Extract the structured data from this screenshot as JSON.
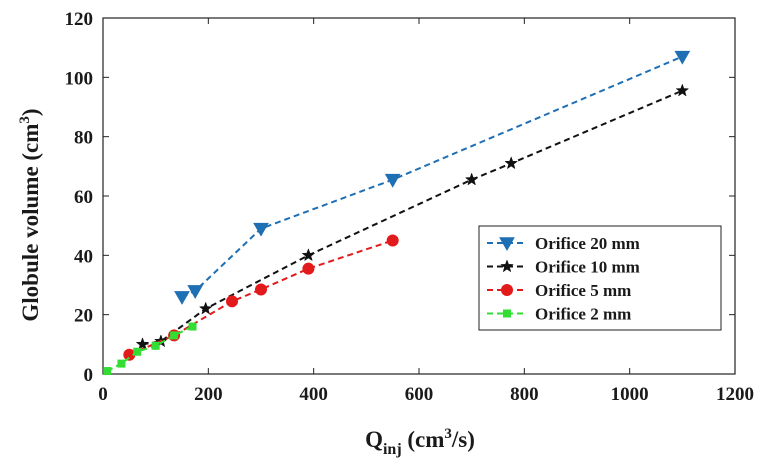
{
  "chart_data": {
    "type": "line",
    "title": "",
    "xlabel": {
      "main": "Q",
      "sub": "inj",
      "rest1": " (cm",
      "sup": "3",
      "rest2": "/s)"
    },
    "ylabel": {
      "main": "Globule volume (cm",
      "sup": "3",
      "rest": ")"
    },
    "xlim": [
      0,
      1200
    ],
    "ylim": [
      0,
      120
    ],
    "x_ticks": [
      "0",
      "200",
      "400",
      "600",
      "800",
      "1000",
      "1200"
    ],
    "y_ticks": [
      "0",
      "20",
      "40",
      "60",
      "80",
      "100",
      "120"
    ],
    "grid": false,
    "legend_position": "lower-right",
    "series": [
      {
        "name": "Orifice 20 mm",
        "color": "#1f6fb4",
        "marker": "triangle-down",
        "x": [
          150,
          175,
          300,
          550,
          1100
        ],
        "y": [
          26,
          28,
          49,
          65.5,
          107
        ]
      },
      {
        "name": "Orifice 10 mm",
        "color": "#111111",
        "marker": "star",
        "x": [
          75,
          110,
          195,
          390,
          700,
          775,
          1100
        ],
        "y": [
          10,
          11,
          22,
          40,
          65.5,
          71,
          95.5
        ]
      },
      {
        "name": "Orifice 5 mm",
        "color": "#e31a1c",
        "marker": "circle",
        "x": [
          50,
          135,
          245,
          300,
          390,
          550
        ],
        "y": [
          6.5,
          13,
          24.5,
          28.5,
          35.5,
          45
        ]
      },
      {
        "name": "Orifice 2 mm",
        "color": "#33dd33",
        "marker": "square",
        "x": [
          8,
          35,
          65,
          100,
          135,
          170
        ],
        "y": [
          1,
          3.5,
          7.5,
          9.5,
          13,
          16
        ]
      }
    ]
  }
}
